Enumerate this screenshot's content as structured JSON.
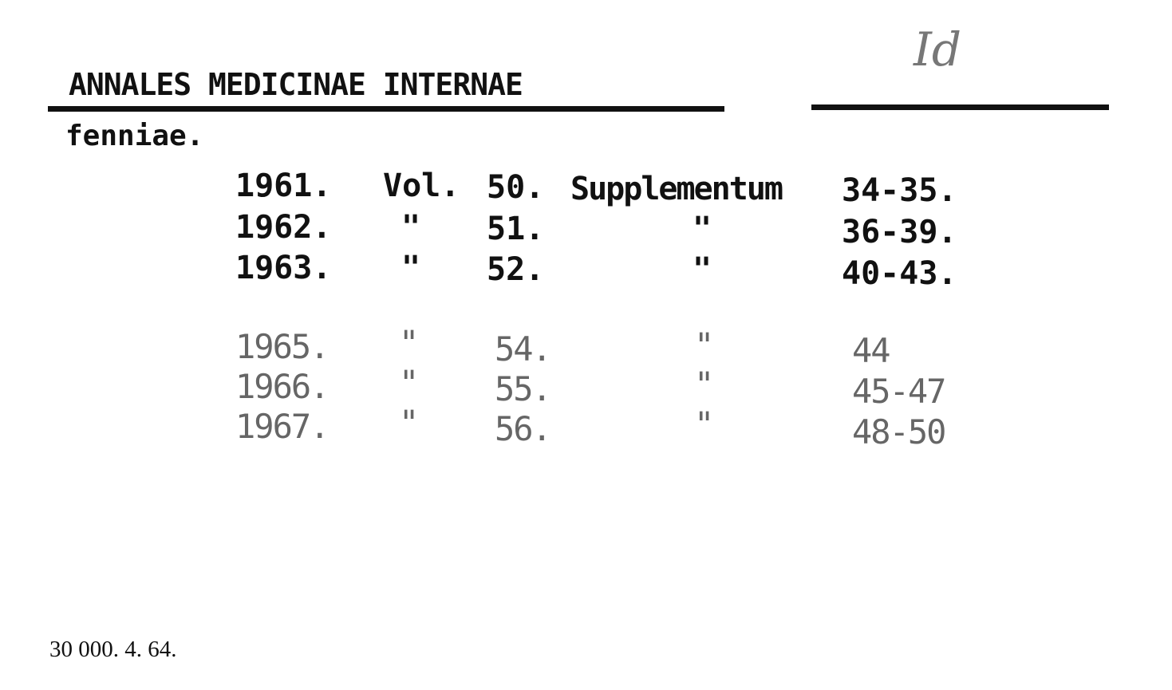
{
  "card": {
    "call_mark": "Id",
    "title": "ANNALES MEDICINAE INTERNAE",
    "subtitle": "fenniae.",
    "typed_rows": [
      {
        "year": "1961.",
        "vol_label": "Vol.",
        "vol": "50.",
        "series": "Supplementum",
        "numbers": "34-35."
      },
      {
        "year": "1962.",
        "vol_label": "\"",
        "vol": "51.",
        "series": "\"",
        "numbers": "36-39."
      },
      {
        "year": "1963.",
        "vol_label": "\"",
        "vol": "52.",
        "series": "\"",
        "numbers": "40-43."
      }
    ],
    "added_rows": [
      {
        "year": "1965.",
        "vol_label": "\"",
        "vol": "54.",
        "series": "\"",
        "numbers": "44"
      },
      {
        "year": "1966.",
        "vol_label": "\"",
        "vol": "55.",
        "series": "\"",
        "numbers": "45-47"
      },
      {
        "year": "1967.",
        "vol_label": "\"",
        "vol": "56.",
        "series": "\"",
        "numbers": "48-50"
      }
    ],
    "print_code": "30 000.  4.  64."
  }
}
